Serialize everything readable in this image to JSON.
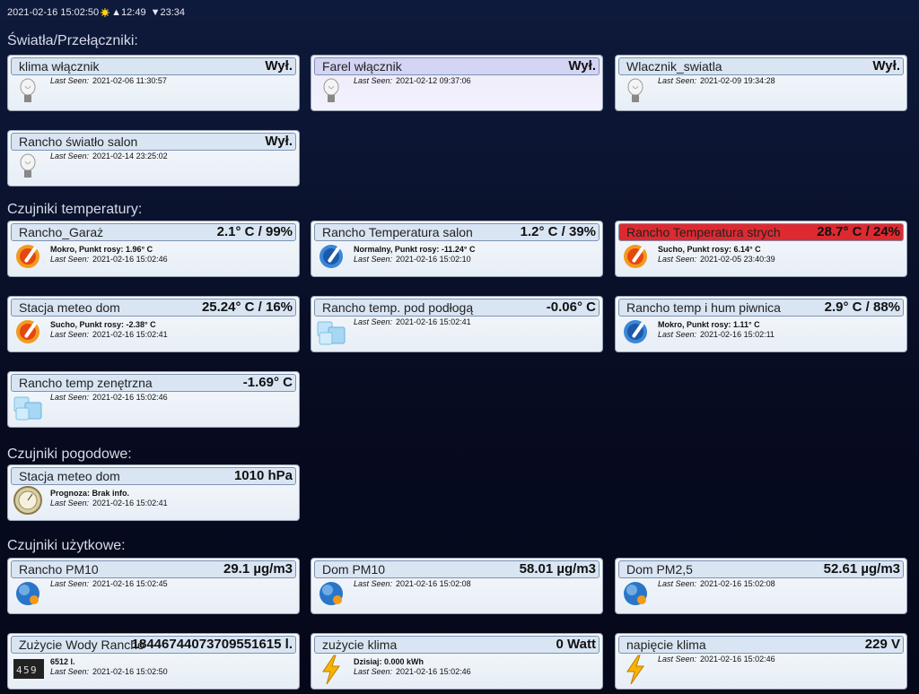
{
  "header": {
    "datetime": "2021-02-16 15:02:50",
    "sunrise": "▲12:49",
    "sunset": "▼23:34"
  },
  "labels": {
    "last_seen": "Last Seen:"
  },
  "sections": [
    {
      "title": "Światła/Przełączniki:",
      "cards": [
        {
          "name": "klima włącznik",
          "value": "Wył.",
          "last_seen": "2021-02-06 11:30:57"
        },
        {
          "name": "Farel włącznik",
          "value": "Wył.",
          "last_seen": "2021-02-12 09:37:06"
        },
        {
          "name": "Wlacznik_swiatla",
          "value": "Wył.",
          "last_seen": "2021-02-09 19:34:28"
        },
        {
          "name": "Rancho światło salon",
          "value": "Wył.",
          "last_seen": "2021-02-14 23:25:02"
        }
      ]
    },
    {
      "title": "Czujniki temperatury:",
      "cards": [
        {
          "name": "Rancho_Garaż",
          "value": "2.1° C / 99%",
          "detail": "Mokro, Punkt rosy: 1.96° C",
          "last_seen": "2021-02-16 15:02:46"
        },
        {
          "name": "Rancho Temperatura salon",
          "value": "1.2° C / 39%",
          "detail": "Normalny, Punkt rosy: -11.24° C",
          "last_seen": "2021-02-16 15:02:10"
        },
        {
          "name": "Rancho Temperatura strych",
          "value": "28.7° C / 24%",
          "detail": "Sucho, Punkt rosy: 6.14° C",
          "last_seen": "2021-02-05 23:40:39"
        },
        {
          "name": "Stacja meteo dom",
          "value": "25.24° C / 16%",
          "detail": "Sucho, Punkt rosy: -2.38° C",
          "last_seen": "2021-02-16 15:02:41"
        },
        {
          "name": "Rancho temp. pod podłogą",
          "value": "-0.06° C",
          "last_seen": "2021-02-16 15:02:41"
        },
        {
          "name": "Rancho temp i hum piwnica",
          "value": "2.9° C / 88%",
          "detail": "Mokro, Punkt rosy: 1.11° C",
          "last_seen": "2021-02-16 15:02:11"
        },
        {
          "name": "Rancho temp zenętrzna",
          "value": "-1.69° C",
          "last_seen": "2021-02-16 15:02:46"
        }
      ]
    },
    {
      "title": "Czujniki pogodowe:",
      "cards": [
        {
          "name": "Stacja meteo dom",
          "value": "1010 hPa",
          "detail": "Prognoza: Brak info.",
          "last_seen": "2021-02-16 15:02:41"
        }
      ]
    },
    {
      "title": "Czujniki użytkowe:",
      "cards": [
        {
          "name": "Rancho PM10",
          "value": "29.1 µg/m3",
          "last_seen": "2021-02-16 15:02:45"
        },
        {
          "name": "Dom PM10",
          "value": "58.01 µg/m3",
          "last_seen": "2021-02-16 15:02:08"
        },
        {
          "name": "Dom PM2,5",
          "value": "52.61 µg/m3",
          "last_seen": "2021-02-16 15:02:08"
        },
        {
          "name": "Zużycie Wody Rancho",
          "value": "18446744073709551615 l.",
          "detail": "6512 l.",
          "last_seen": "2021-02-16 15:02:50"
        },
        {
          "name": "zużycie klima",
          "value": "0 Watt",
          "detail": "Dzisiaj: 0.000 kWh",
          "last_seen": "2021-02-16 15:02:46"
        },
        {
          "name": "napięcie klima",
          "value": "229 V",
          "last_seen": "2021-02-16 15:02:46"
        }
      ]
    }
  ]
}
